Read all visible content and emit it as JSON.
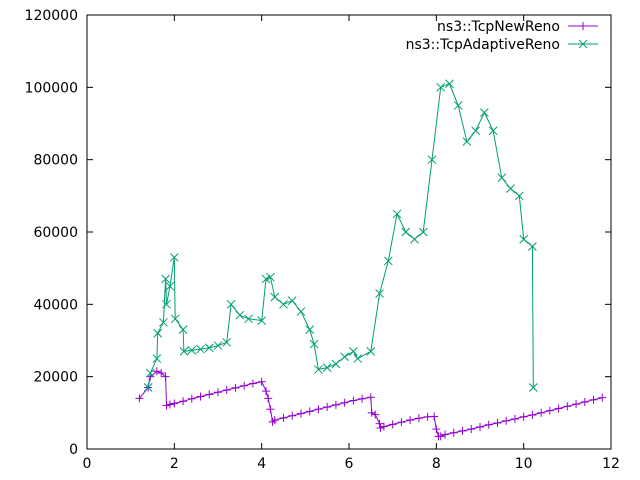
{
  "chart_data": {
    "type": "line",
    "title": "",
    "xlabel": "",
    "ylabel": "",
    "xlim": [
      0,
      12
    ],
    "ylim": [
      0,
      120000
    ],
    "xticks": [
      0,
      2,
      4,
      6,
      8,
      10,
      12
    ],
    "xtick_labels": [
      "0",
      "2",
      "4",
      "6",
      "8",
      "10",
      "12"
    ],
    "yticks": [
      0,
      20000,
      40000,
      60000,
      80000,
      100000,
      120000
    ],
    "ytick_labels": [
      "0",
      "20000",
      "40000",
      "60000",
      "80000",
      "100000",
      "120000"
    ],
    "grid": false,
    "legend_position": "top-right",
    "series": [
      {
        "name": "ns3::TcpNewReno",
        "color": "#9400d3",
        "marker": "plus",
        "x": [
          1.2,
          1.4,
          1.45,
          1.6,
          1.7,
          1.8,
          1.82,
          1.9,
          2.0,
          2.2,
          2.4,
          2.6,
          2.8,
          3.0,
          3.2,
          3.4,
          3.6,
          3.8,
          4.0,
          4.1,
          4.15,
          4.2,
          4.25,
          4.3,
          4.5,
          4.7,
          4.9,
          5.1,
          5.3,
          5.5,
          5.7,
          5.9,
          6.1,
          6.3,
          6.5,
          6.52,
          6.6,
          6.7,
          6.72,
          6.8,
          7.0,
          7.2,
          7.4,
          7.6,
          7.8,
          7.95,
          8.0,
          8.05,
          8.1,
          8.2,
          8.4,
          8.6,
          8.8,
          9.0,
          9.2,
          9.4,
          9.6,
          9.8,
          10.0,
          10.2,
          10.4,
          10.6,
          10.8,
          11.0,
          11.2,
          11.4,
          11.6,
          11.8
        ],
        "y": [
          14000,
          17000,
          20000,
          21500,
          21000,
          20000,
          12000,
          12300,
          12600,
          13200,
          13900,
          14500,
          15100,
          15700,
          16300,
          16900,
          17500,
          18100,
          18600,
          16000,
          14000,
          11000,
          7500,
          8000,
          8600,
          9200,
          9800,
          10400,
          11000,
          11600,
          12200,
          12800,
          13400,
          13900,
          14300,
          10000,
          9500,
          7000,
          5800,
          6200,
          6800,
          7400,
          8000,
          8500,
          8900,
          9000,
          5500,
          3500,
          3500,
          4000,
          4500,
          5000,
          5500,
          6100,
          6700,
          7200,
          7800,
          8300,
          8900,
          9400,
          10000,
          10600,
          11200,
          11800,
          12400,
          13000,
          13600,
          14200
        ]
      },
      {
        "name": "ns3::TcpAdaptiveReno",
        "color": "#009e73",
        "marker": "x",
        "x": [
          1.4,
          1.45,
          1.6,
          1.62,
          1.75,
          1.8,
          1.82,
          1.9,
          2.0,
          2.02,
          2.2,
          2.22,
          2.4,
          2.6,
          2.8,
          3.0,
          3.2,
          3.3,
          3.5,
          3.7,
          4.0,
          4.1,
          4.2,
          4.3,
          4.5,
          4.7,
          4.9,
          5.1,
          5.2,
          5.3,
          5.5,
          5.7,
          5.9,
          6.1,
          6.2,
          6.5,
          6.7,
          6.9,
          7.1,
          7.3,
          7.5,
          7.7,
          7.9,
          8.1,
          8.3,
          8.5,
          8.7,
          8.9,
          9.1,
          9.3,
          9.5,
          9.7,
          9.9,
          10.0,
          10.2,
          10.22
        ],
        "y": [
          17000,
          21000,
          25000,
          32000,
          35000,
          47000,
          40000,
          45000,
          53000,
          36000,
          33000,
          27000,
          27300,
          27600,
          28000,
          28600,
          29500,
          40000,
          37000,
          36000,
          35500,
          47000,
          47500,
          42000,
          40000,
          41000,
          38000,
          33000,
          29000,
          22000,
          22500,
          23500,
          25500,
          27000,
          25000,
          27000,
          43000,
          52000,
          65000,
          60000,
          58000,
          60000,
          80000,
          100000,
          101000,
          95000,
          85000,
          88000,
          93000,
          88000,
          75000,
          72000,
          70000,
          58000,
          56000,
          17000
        ]
      }
    ]
  }
}
